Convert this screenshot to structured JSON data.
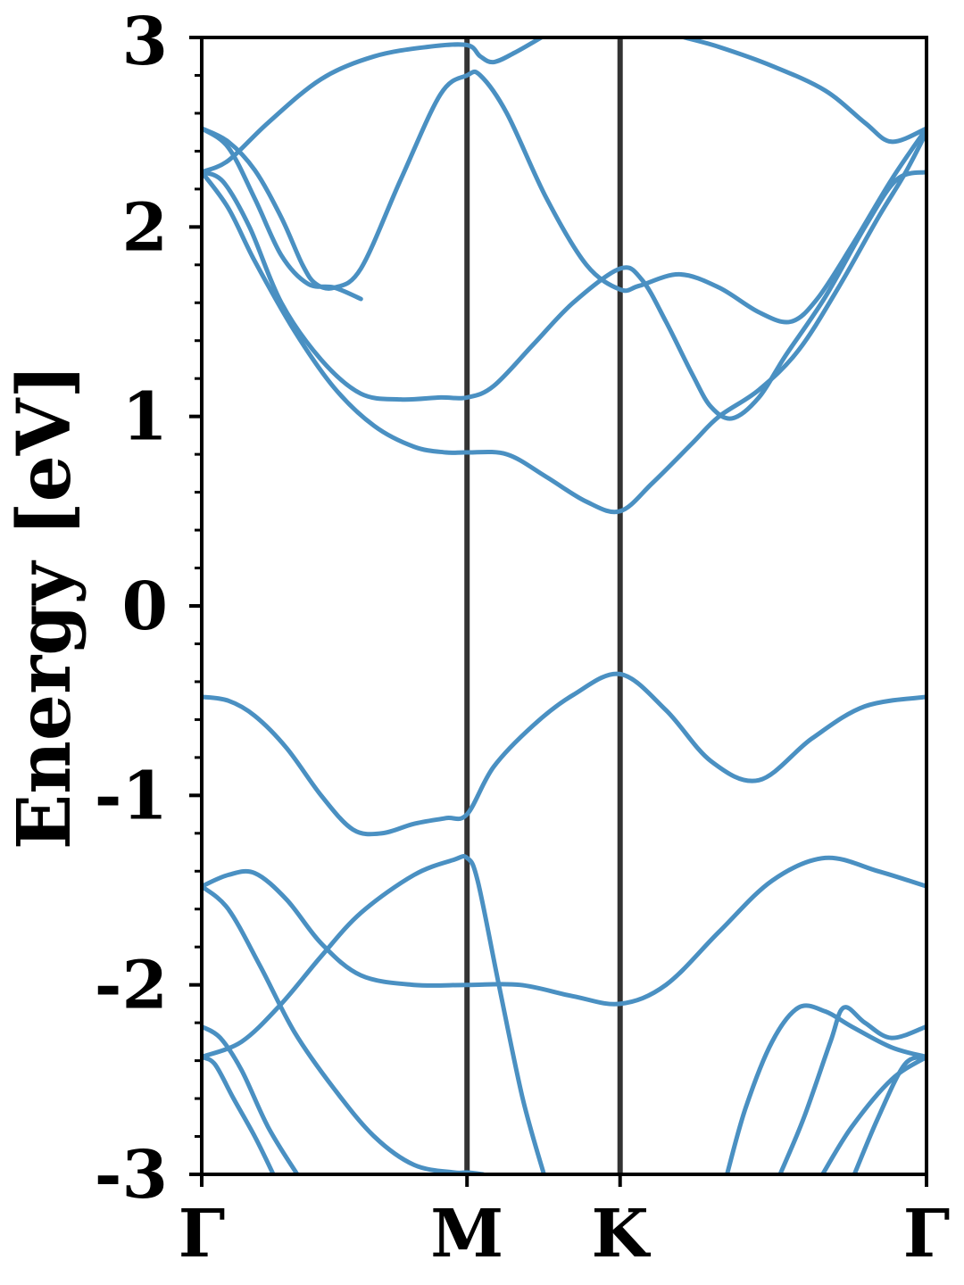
{
  "chart_data": {
    "type": "line",
    "title": "",
    "xlabel": "",
    "ylabel": "Energy [eV]",
    "ylim": [
      -3,
      3
    ],
    "y_ticks": [
      {
        "value": 3,
        "label": "3"
      },
      {
        "value": 2,
        "label": "2"
      },
      {
        "value": 1,
        "label": "1"
      },
      {
        "value": 0,
        "label": "0"
      },
      {
        "value": -1,
        "label": "-1"
      },
      {
        "value": -2,
        "label": "-2"
      },
      {
        "value": -3,
        "label": "-3"
      }
    ],
    "y_minor_step": 0.2,
    "x_ticks": [
      {
        "value": 0,
        "label": "Γ"
      },
      {
        "value": 1,
        "label": "M"
      },
      {
        "value": 1.577,
        "label": "K"
      },
      {
        "value": 2.732,
        "label": "Γ"
      }
    ],
    "xlim": [
      0,
      2.732
    ],
    "grid": false,
    "legend": "none",
    "colors": {
      "band": "#4a90c2",
      "kpath_line": "#333333",
      "frame": "#000000"
    },
    "series": [
      {
        "values": [
          [
            0,
            -0.48
          ],
          [
            0.1,
            -0.5
          ],
          [
            0.2,
            -0.58
          ],
          [
            0.32,
            -0.75
          ],
          [
            0.45,
            -1.0
          ],
          [
            0.57,
            -1.18
          ],
          [
            0.68,
            -1.2
          ],
          [
            0.8,
            -1.15
          ],
          [
            0.92,
            -1.12
          ],
          [
            1.0,
            -1.1
          ],
          [
            1.1,
            -0.85
          ],
          [
            1.25,
            -0.63
          ],
          [
            1.4,
            -0.47
          ],
          [
            1.577,
            -0.36
          ],
          [
            1.75,
            -0.55
          ],
          [
            1.92,
            -0.82
          ],
          [
            2.1,
            -0.92
          ],
          [
            2.3,
            -0.7
          ],
          [
            2.5,
            -0.53
          ],
          [
            2.732,
            -0.48
          ]
        ]
      },
      {
        "values": [
          [
            0,
            -1.48
          ],
          [
            0.1,
            -1.42
          ],
          [
            0.2,
            -1.41
          ],
          [
            0.32,
            -1.55
          ],
          [
            0.45,
            -1.78
          ],
          [
            0.6,
            -1.95
          ],
          [
            0.8,
            -2.0
          ],
          [
            1.0,
            -2.0
          ],
          [
            1.2,
            -2.0
          ],
          [
            1.4,
            -2.06
          ],
          [
            1.577,
            -2.1
          ],
          [
            1.75,
            -2.0
          ],
          [
            1.95,
            -1.72
          ],
          [
            2.15,
            -1.45
          ],
          [
            2.35,
            -1.33
          ],
          [
            2.55,
            -1.4
          ],
          [
            2.732,
            -1.48
          ]
        ]
      },
      {
        "values": [
          [
            0,
            -2.38
          ],
          [
            0.15,
            -2.3
          ],
          [
            0.3,
            -2.1
          ],
          [
            0.45,
            -1.85
          ],
          [
            0.6,
            -1.62
          ],
          [
            0.8,
            -1.42
          ],
          [
            0.95,
            -1.34
          ],
          [
            1.0,
            -1.33
          ],
          [
            1.04,
            -1.45
          ],
          [
            1.12,
            -2.0
          ],
          [
            1.21,
            -2.6
          ],
          [
            1.29,
            -3.0
          ]
        ]
      },
      {
        "values": [
          [
            0,
            -1.48
          ],
          [
            0.1,
            -1.6
          ],
          [
            0.22,
            -1.9
          ],
          [
            0.35,
            -2.25
          ],
          [
            0.5,
            -2.55
          ],
          [
            0.65,
            -2.8
          ],
          [
            0.8,
            -2.95
          ],
          [
            0.95,
            -2.99
          ],
          [
            1.0,
            -2.99
          ],
          [
            1.06,
            -3.0
          ]
        ]
      },
      {
        "values": [
          [
            0,
            -2.22
          ],
          [
            0.07,
            -2.28
          ],
          [
            0.15,
            -2.45
          ],
          [
            0.25,
            -2.75
          ],
          [
            0.36,
            -3.0
          ]
        ]
      },
      {
        "values": [
          [
            0,
            -2.38
          ],
          [
            0.05,
            -2.42
          ],
          [
            0.12,
            -2.6
          ],
          [
            0.2,
            -2.8
          ],
          [
            0.27,
            -3.0
          ]
        ]
      },
      {
        "values": [
          [
            1.98,
            -3.0
          ],
          [
            2.05,
            -2.65
          ],
          [
            2.15,
            -2.3
          ],
          [
            2.25,
            -2.12
          ],
          [
            2.35,
            -2.14
          ],
          [
            2.45,
            -2.22
          ],
          [
            2.6,
            -2.33
          ],
          [
            2.732,
            -2.38
          ]
        ]
      },
      {
        "values": [
          [
            2.18,
            -3.0
          ],
          [
            2.27,
            -2.7
          ],
          [
            2.37,
            -2.3
          ],
          [
            2.42,
            -2.12
          ],
          [
            2.5,
            -2.2
          ],
          [
            2.6,
            -2.28
          ],
          [
            2.732,
            -2.22
          ]
        ]
      },
      {
        "values": [
          [
            2.34,
            -3.0
          ],
          [
            2.45,
            -2.75
          ],
          [
            2.6,
            -2.5
          ],
          [
            2.732,
            -2.38
          ]
        ]
      },
      {
        "values": [
          [
            2.46,
            -3.0
          ],
          [
            2.55,
            -2.7
          ],
          [
            2.65,
            -2.42
          ],
          [
            2.732,
            -2.38
          ]
        ]
      },
      {
        "values": [
          [
            0,
            2.29
          ],
          [
            0.08,
            2.24
          ],
          [
            0.18,
            2.0
          ],
          [
            0.3,
            1.6
          ],
          [
            0.45,
            1.3
          ],
          [
            0.6,
            1.12
          ],
          [
            0.75,
            1.09
          ],
          [
            0.9,
            1.1
          ],
          [
            1.0,
            1.1
          ],
          [
            1.1,
            1.16
          ],
          [
            1.25,
            1.38
          ],
          [
            1.4,
            1.6
          ],
          [
            1.577,
            1.78
          ],
          [
            1.66,
            1.72
          ],
          [
            1.75,
            1.5
          ],
          [
            1.85,
            1.22
          ],
          [
            1.92,
            1.05
          ],
          [
            2.0,
            0.99
          ],
          [
            2.1,
            1.1
          ],
          [
            2.2,
            1.32
          ],
          [
            2.35,
            1.63
          ],
          [
            2.5,
            2.0
          ],
          [
            2.62,
            2.25
          ],
          [
            2.732,
            2.29
          ]
        ]
      },
      {
        "values": [
          [
            0,
            2.29
          ],
          [
            0.1,
            2.1
          ],
          [
            0.2,
            1.82
          ],
          [
            0.35,
            1.45
          ],
          [
            0.5,
            1.15
          ],
          [
            0.65,
            0.95
          ],
          [
            0.8,
            0.84
          ],
          [
            0.92,
            0.81
          ],
          [
            1.0,
            0.81
          ],
          [
            1.15,
            0.8
          ],
          [
            1.3,
            0.68
          ],
          [
            1.45,
            0.55
          ],
          [
            1.577,
            0.5
          ],
          [
            1.7,
            0.65
          ],
          [
            1.85,
            0.86
          ],
          [
            1.95,
            1.0
          ],
          [
            2.1,
            1.14
          ],
          [
            2.25,
            1.35
          ],
          [
            2.4,
            1.68
          ],
          [
            2.55,
            2.05
          ],
          [
            2.65,
            2.28
          ],
          [
            2.732,
            2.5
          ]
        ]
      },
      {
        "values": [
          [
            0,
            2.52
          ],
          [
            0.1,
            2.45
          ],
          [
            0.2,
            2.3
          ],
          [
            0.3,
            2.05
          ],
          [
            0.38,
            1.8
          ],
          [
            0.43,
            1.7
          ],
          [
            0.5,
            1.68
          ],
          [
            0.6,
            1.78
          ],
          [
            0.75,
            2.25
          ],
          [
            0.9,
            2.7
          ],
          [
            1.0,
            2.8
          ],
          [
            1.05,
            2.8
          ],
          [
            1.15,
            2.6
          ],
          [
            1.3,
            2.15
          ],
          [
            1.45,
            1.8
          ],
          [
            1.577,
            1.67
          ],
          [
            1.65,
            1.69
          ],
          [
            1.8,
            1.75
          ],
          [
            1.95,
            1.68
          ],
          [
            2.1,
            1.55
          ],
          [
            2.22,
            1.5
          ],
          [
            2.32,
            1.62
          ],
          [
            2.45,
            1.9
          ],
          [
            2.6,
            2.25
          ],
          [
            2.732,
            2.52
          ]
        ]
      },
      {
        "values": [
          [
            0,
            2.52
          ],
          [
            0.1,
            2.42
          ],
          [
            0.2,
            2.15
          ],
          [
            0.3,
            1.85
          ],
          [
            0.4,
            1.7
          ],
          [
            0.5,
            1.68
          ],
          [
            0.6,
            1.62
          ]
        ]
      },
      {
        "values": [
          [
            0,
            2.29
          ],
          [
            0.1,
            2.35
          ],
          [
            0.25,
            2.55
          ],
          [
            0.45,
            2.78
          ],
          [
            0.65,
            2.9
          ],
          [
            0.85,
            2.95
          ],
          [
            1.0,
            2.96
          ],
          [
            1.05,
            2.9
          ],
          [
            1.1,
            2.87
          ],
          [
            1.18,
            2.92
          ],
          [
            1.28,
            3.0
          ]
        ]
      },
      {
        "values": [
          [
            1.82,
            3.0
          ],
          [
            1.95,
            2.95
          ],
          [
            2.15,
            2.85
          ],
          [
            2.35,
            2.72
          ],
          [
            2.5,
            2.55
          ],
          [
            2.6,
            2.45
          ],
          [
            2.732,
            2.52
          ]
        ]
      }
    ]
  }
}
